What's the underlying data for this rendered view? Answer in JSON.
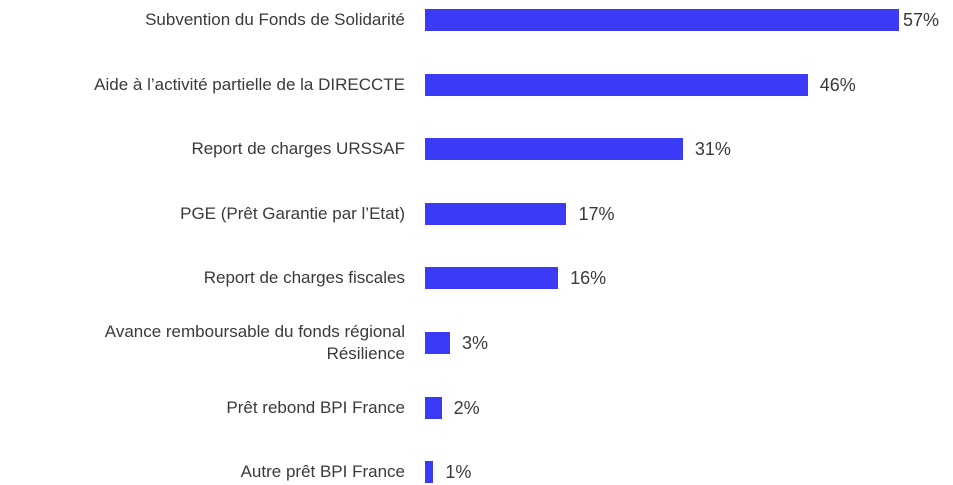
{
  "chart_data": {
    "type": "bar",
    "orientation": "horizontal",
    "categories": [
      "Subvention du Fonds de Solidarité",
      "Aide à l’activité partielle de la DIRECCTE",
      "Report de charges URSSAF",
      "PGE (Prêt Garantie par l’Etat)",
      "Report de charges fiscales",
      "Avance remboursable du fonds régional\nRésilience",
      "Prêt rebond BPI France",
      "Autre prêt BPI France"
    ],
    "values": [
      57,
      46,
      31,
      17,
      16,
      3,
      2,
      1
    ],
    "value_labels": [
      "57%",
      "46%",
      "31%",
      "17%",
      "16%",
      "3%",
      "2%",
      "1%"
    ],
    "color": "#3b3bf7"
  }
}
